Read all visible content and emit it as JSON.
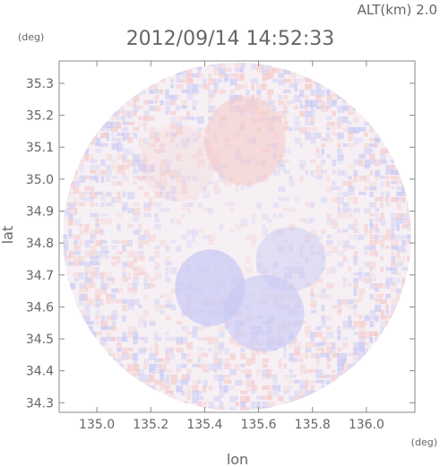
{
  "header": {
    "altitude_label": "ALT(km) 2.0",
    "timestamp": "2012/09/14 14:52:33"
  },
  "colors": {
    "axis": "#888888",
    "text": "#666666",
    "positive": "#f4c8c8",
    "negative": "#c8c8f4",
    "field": "#f6f0f4"
  },
  "chart_data": {
    "type": "heatmap",
    "title": "2012/09/14 14:52:33",
    "subtitle": "ALT(km) 2.0",
    "xlabel": "lon",
    "ylabel": "lat",
    "x_unit": "(deg)",
    "y_unit": "(deg)",
    "xlim": [
      134.86,
      136.18
    ],
    "ylim": [
      34.27,
      35.37
    ],
    "x_ticks": [
      135.0,
      135.2,
      135.4,
      135.6,
      135.8,
      136.0
    ],
    "x_tick_labels": [
      "135.0",
      "135.2",
      "135.4",
      "135.6",
      "135.8",
      "136.0"
    ],
    "y_ticks": [
      34.3,
      34.4,
      34.5,
      34.6,
      34.7,
      34.8,
      34.9,
      35.0,
      35.1,
      35.2,
      35.3
    ],
    "y_tick_labels": [
      "34.3",
      "34.4",
      "34.5",
      "34.6",
      "34.7",
      "34.8",
      "34.9",
      "35.0",
      "35.1",
      "35.2",
      "35.3"
    ],
    "coverage": {
      "shape": "circle",
      "center_lon": 135.52,
      "center_lat": 34.82,
      "radius_deg_lat": 0.545
    },
    "field_regions": [
      {
        "sign": "positive",
        "lon": 135.55,
        "lat": 35.12,
        "r_lon": 0.15,
        "r_lat": 0.14,
        "intensity": 0.55
      },
      {
        "sign": "positive",
        "lon": 135.3,
        "lat": 35.05,
        "r_lon": 0.14,
        "r_lat": 0.12,
        "intensity": 0.25
      },
      {
        "sign": "negative",
        "lon": 135.42,
        "lat": 34.66,
        "r_lon": 0.13,
        "r_lat": 0.12,
        "intensity": 0.7
      },
      {
        "sign": "negative",
        "lon": 135.62,
        "lat": 34.58,
        "r_lon": 0.15,
        "r_lat": 0.12,
        "intensity": 0.6
      },
      {
        "sign": "negative",
        "lon": 135.72,
        "lat": 34.75,
        "r_lon": 0.13,
        "r_lat": 0.1,
        "intensity": 0.45
      }
    ],
    "grid": false,
    "legend": "none"
  }
}
